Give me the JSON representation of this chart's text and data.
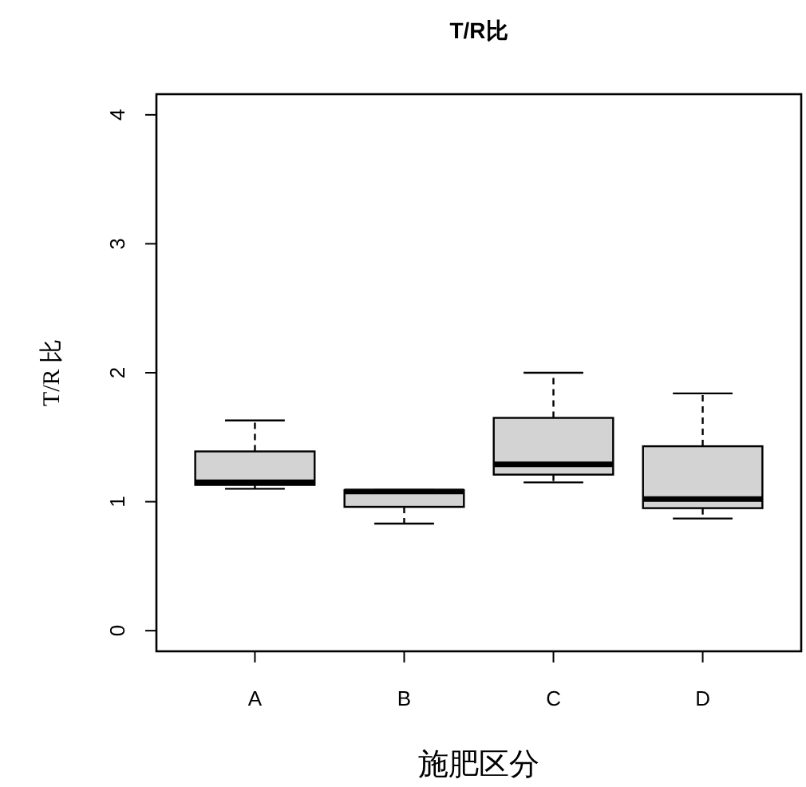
{
  "chart_data": {
    "type": "box",
    "title": "T/R比",
    "xlabel": "施肥区分",
    "ylabel": "T/R 比",
    "categories": [
      "A",
      "B",
      "C",
      "D"
    ],
    "series": [
      {
        "color": "#d3d3d3",
        "boxes": [
          {
            "low": 1.1,
            "q1": 1.13,
            "median": 1.15,
            "q3": 1.39,
            "high": 1.63
          },
          {
            "low": 0.83,
            "q1": 0.96,
            "median": 1.08,
            "q3": 1.09,
            "high": 1.09
          },
          {
            "low": 1.15,
            "q1": 1.21,
            "median": 1.29,
            "q3": 1.65,
            "high": 2.0
          },
          {
            "low": 0.87,
            "q1": 0.95,
            "median": 1.02,
            "q3": 1.43,
            "high": 1.84
          }
        ]
      }
    ],
    "ylim": [
      -0.16,
      4.16
    ],
    "yticks": [
      0,
      1,
      2,
      3,
      4
    ]
  }
}
